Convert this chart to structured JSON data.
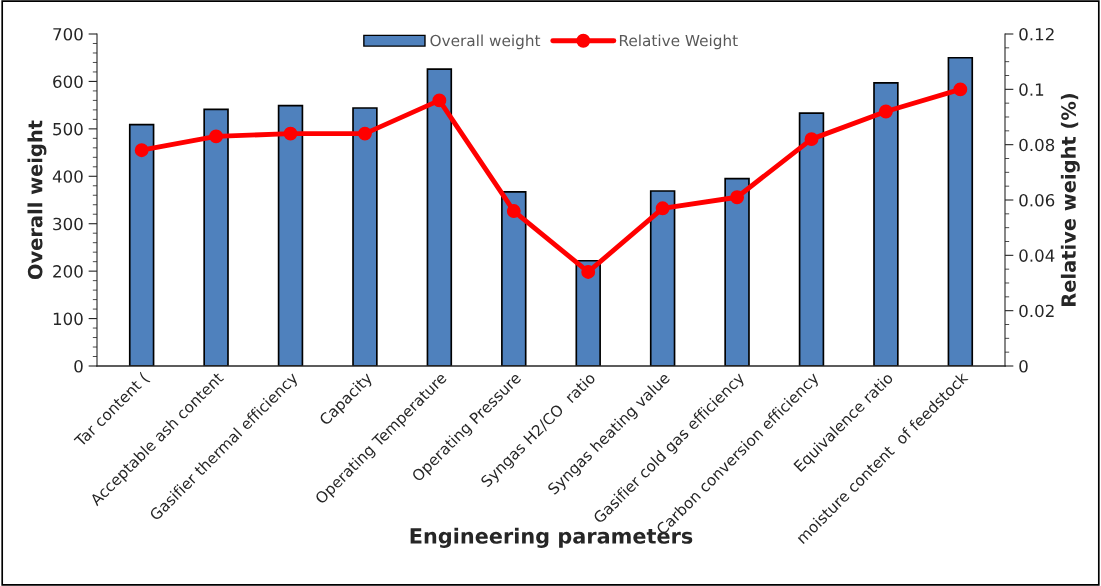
{
  "chart_data": {
    "type": "bar",
    "xlabel": "Engineering parameters",
    "ylabel": "Overall weight",
    "y2label": "Relative weight (%)",
    "categories": [
      "Tar content (",
      "Acceptable ash content",
      "Gasifier thermal efficiency",
      "Capacity",
      "Operating Temperature",
      "Operating Pressure",
      "Syngas H2/CO  ratio",
      "Syngas heating value",
      "Gasifier cold gas efficiency",
      "Carbon conversion efficiency",
      "Equivalence ratio",
      "moisture content  of feedstock"
    ],
    "series": [
      {
        "name": "Overall weight",
        "color": "#4f81bd",
        "values": [
          509,
          541,
          549,
          544,
          626,
          367,
          222,
          369,
          395,
          533,
          597,
          650
        ]
      },
      {
        "name": "Relative Weight",
        "type": "line",
        "axis": "y2",
        "color": "#ff0000",
        "marker": "circle",
        "values": [
          0.078,
          0.083,
          0.084,
          0.084,
          0.096,
          0.056,
          0.034,
          0.057,
          0.061,
          0.082,
          0.092,
          0.1
        ]
      }
    ],
    "ylim": [
      0,
      700
    ],
    "yticks": [
      0,
      100,
      200,
      300,
      400,
      500,
      600,
      700
    ],
    "y2lim": [
      0,
      0.12
    ],
    "y2ticks": [
      0,
      0.02,
      0.04,
      0.06,
      0.08,
      0.1,
      0.12
    ],
    "legend": "top",
    "grid": false
  }
}
